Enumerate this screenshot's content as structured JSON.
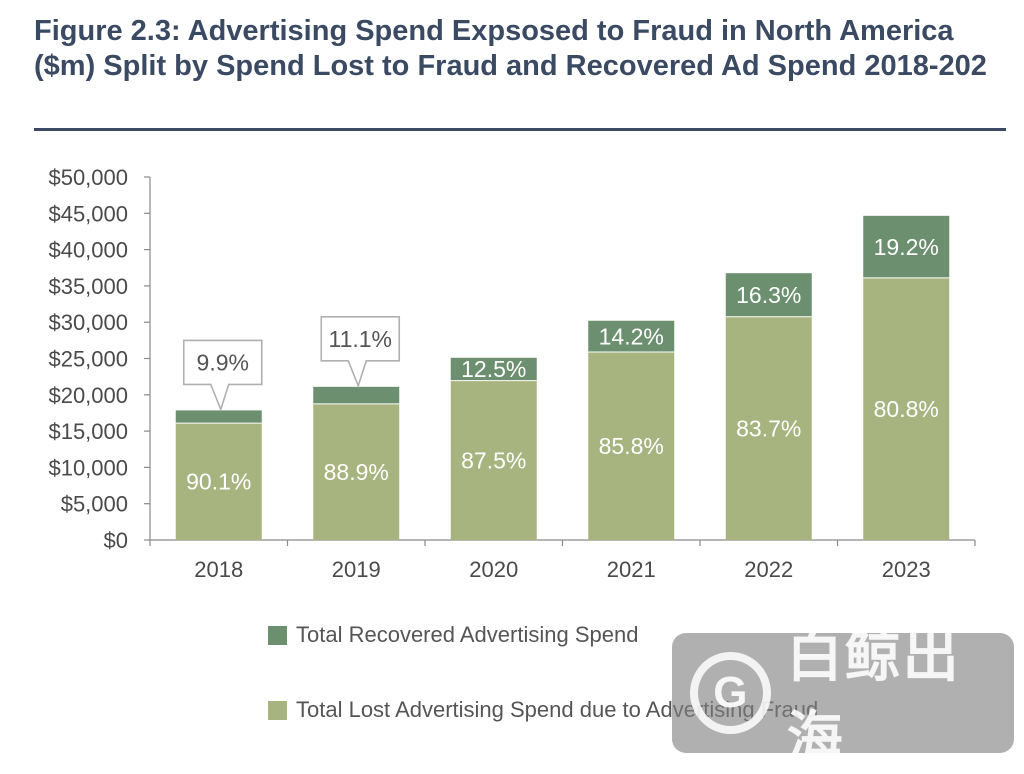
{
  "title": "Figure 2.3: Advertising Spend Expsosed to Fraud in North America ($m) Split by Spend Lost to Fraud and Recovered Ad Spend 2018-202",
  "chart_data": {
    "type": "bar",
    "stacked": true,
    "categories": [
      "2018",
      "2019",
      "2020",
      "2021",
      "2022",
      "2023"
    ],
    "series": [
      {
        "name": "Total Lost Advertising Spend due to Advertising Fraud",
        "color": "#a8b47f",
        "values": [
          16100,
          18750,
          21950,
          25900,
          30750,
          36100
        ],
        "labels": [
          "90.1%",
          "88.9%",
          "87.5%",
          "85.8%",
          "83.7%",
          "80.8%"
        ]
      },
      {
        "name": "Total Recovered Advertising Spend",
        "color": "#6c8f6f",
        "values": [
          1750,
          2350,
          3150,
          4300,
          6000,
          8550
        ],
        "labels": [
          "9.9%",
          "11.1%",
          "12.5%",
          "14.2%",
          "16.3%",
          "19.2%"
        ]
      }
    ],
    "y_ticks": [
      "$0",
      "$5,000",
      "$10,000",
      "$15,000",
      "$20,000",
      "$25,000",
      "$30,000",
      "$35,000",
      "$40,000",
      "$45,000",
      "$50,000"
    ],
    "ylim": [
      0,
      50000
    ],
    "callout_categories": [
      "2018",
      "2019"
    ],
    "legend_position": "bottom"
  },
  "watermark": {
    "logo_letter": "G",
    "text": "白鲸出海"
  }
}
